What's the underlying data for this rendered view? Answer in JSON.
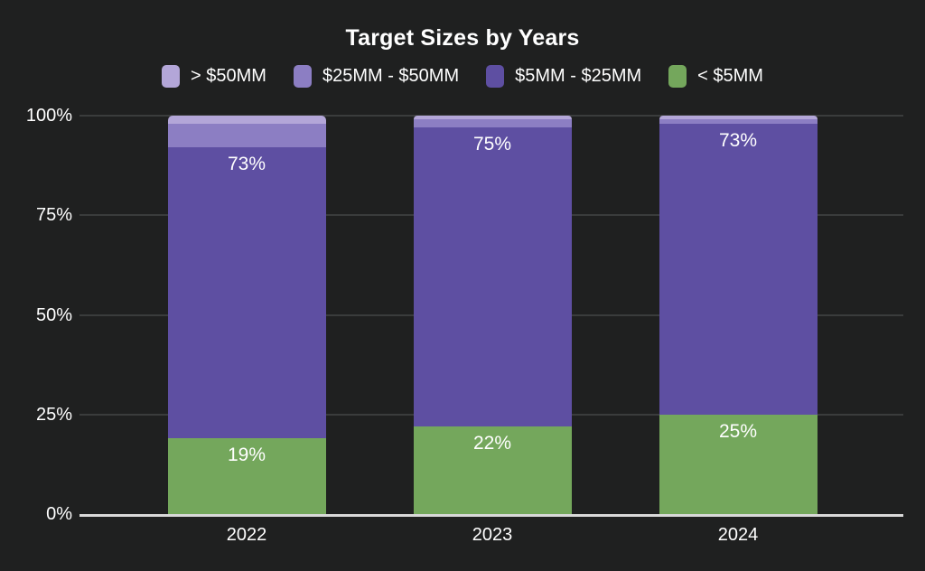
{
  "title": "Target Sizes by Years",
  "colors": {
    "background": "#1f2020",
    "text": "#ffffff",
    "gridline": "#3a3c3c",
    "axis_line": "#d9d9d9",
    "gt_50mm": "#b3a6d8",
    "mm25_50": "#8c7ec3",
    "mm5_25": "#5e4fa2",
    "lt_5mm": "#74a75c"
  },
  "legend": [
    {
      "label": "> $50MM",
      "color": "#b3a6d8"
    },
    {
      "label": "$25MM - $50MM",
      "color": "#8c7ec3"
    },
    {
      "label": "$5MM - $25MM",
      "color": "#5e4fa2"
    },
    {
      "label": "< $5MM",
      "color": "#74a75c"
    }
  ],
  "chart_data": {
    "type": "bar",
    "stacked": true,
    "title": "Target Sizes by Years",
    "categories": [
      "2022",
      "2023",
      "2024"
    ],
    "series": [
      {
        "name": "> $50MM",
        "color": "#b3a6d8",
        "values": [
          2,
          1,
          1
        ],
        "data_labels": [
          "",
          "",
          ""
        ]
      },
      {
        "name": "$25MM - $50MM",
        "color": "#8c7ec3",
        "values": [
          6,
          2,
          1
        ],
        "data_labels": [
          "",
          "",
          ""
        ]
      },
      {
        "name": "$5MM - $25MM",
        "color": "#5e4fa2",
        "values": [
          73,
          75,
          73
        ],
        "data_labels": [
          "73%",
          "75%",
          "73%"
        ]
      },
      {
        "name": "< $5MM",
        "color": "#74a75c",
        "values": [
          19,
          22,
          25
        ],
        "data_labels": [
          "19%",
          "22%",
          "25%"
        ]
      }
    ],
    "stack_order_bottom_to_top": [
      "< $5MM",
      "$5MM - $25MM",
      "$25MM - $50MM",
      "> $50MM"
    ],
    "ylim": [
      0,
      100
    ],
    "yticks": [
      "0%",
      "25%",
      "50%",
      "75%",
      "100%"
    ],
    "ytick_values": [
      0,
      25,
      50,
      75,
      100
    ],
    "grid": true,
    "legend_position": "top"
  }
}
